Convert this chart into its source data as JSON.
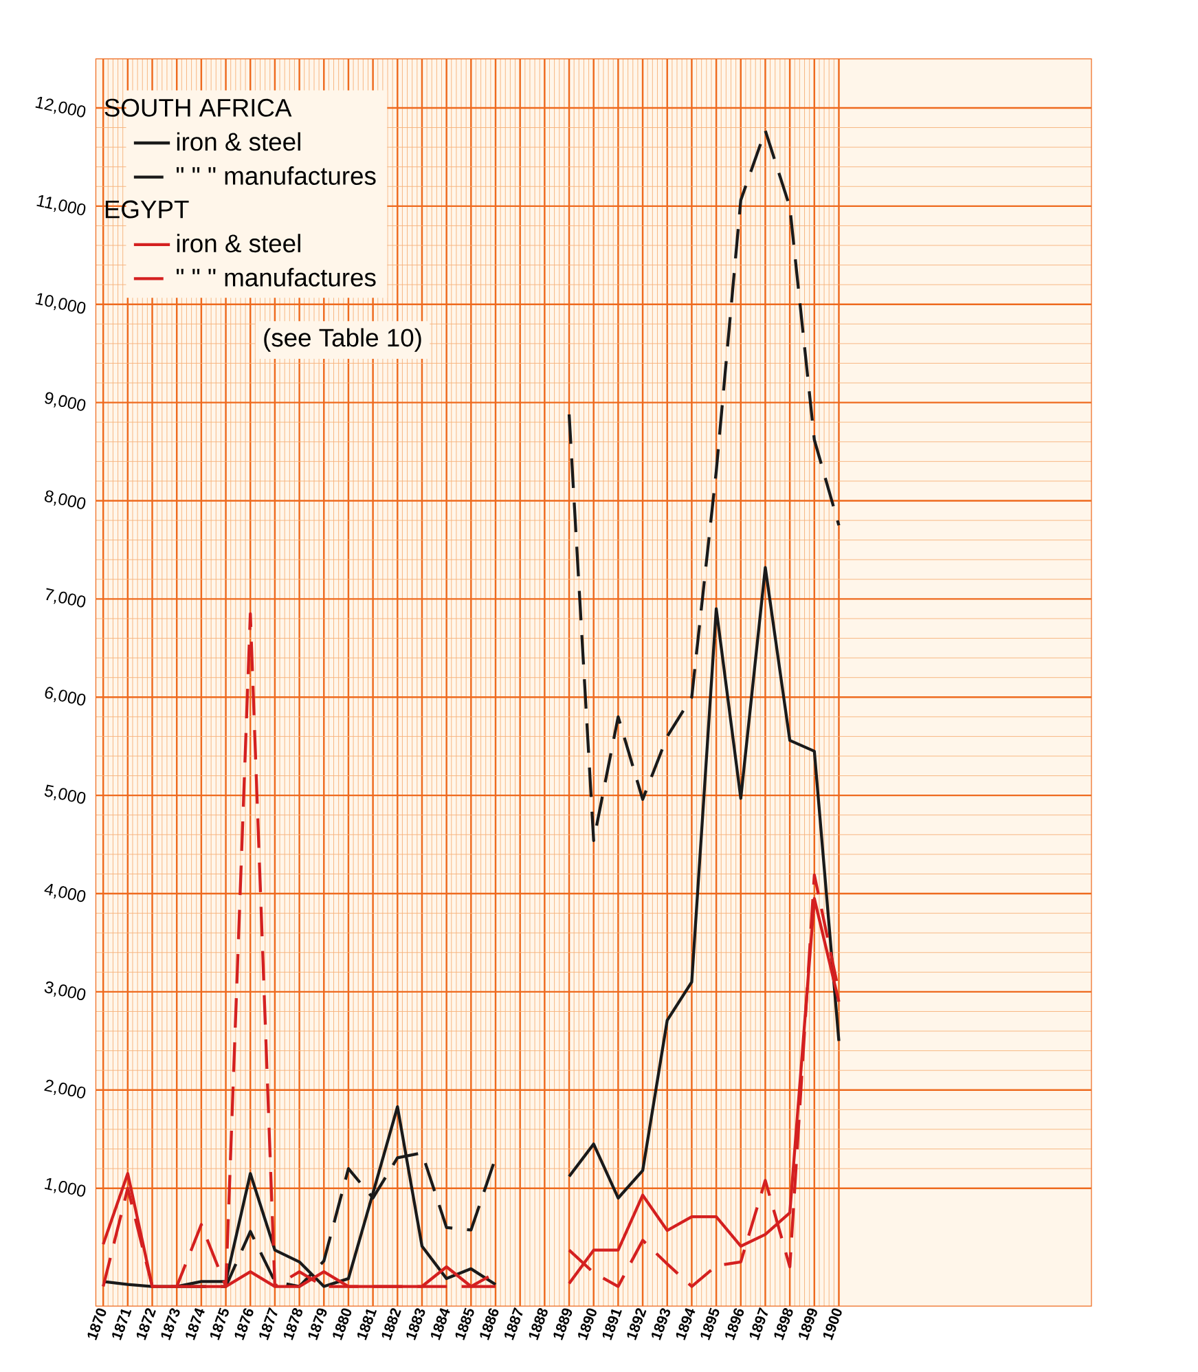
{
  "chart_data": {
    "type": "line",
    "categories": [
      "1870",
      "1871",
      "1872",
      "1873",
      "1874",
      "1875",
      "1876",
      "1877",
      "1878",
      "1879",
      "1880",
      "1881",
      "1882",
      "1883",
      "1884",
      "1885",
      "1886",
      "1887",
      "1888",
      "1889",
      "1890",
      "1891",
      "1892",
      "1893",
      "1894",
      "1895",
      "1896",
      "1897",
      "1898",
      "1899",
      "1900"
    ],
    "series": [
      {
        "name": "iron & steel",
        "color": "#1a1a1a",
        "line_style": "solid",
        "values": [
          50,
          20,
          0,
          0,
          50,
          50,
          1150,
          370,
          250,
          0,
          80,
          950,
          1830,
          410,
          80,
          180,
          20,
          null,
          null,
          1120,
          1450,
          900,
          1180,
          2710,
          3100,
          6900,
          4970,
          7320,
          5560,
          5450,
          2500
        ]
      },
      {
        "name": "\" \" \" manufactures",
        "color": "#1a1a1a",
        "line_style": "dashed",
        "values": [
          null,
          null,
          null,
          0,
          0,
          0,
          560,
          50,
          0,
          260,
          1200,
          900,
          1310,
          1360,
          600,
          575,
          1310,
          null,
          null,
          8880,
          4540,
          5800,
          4960,
          5600,
          6000,
          8300,
          11060,
          11770,
          10990,
          8620,
          7750
        ]
      },
      {
        "name": "iron & steel",
        "color": "#d42020",
        "line_style": "solid",
        "values": [
          430,
          1150,
          0,
          0,
          0,
          0,
          150,
          0,
          0,
          150,
          0,
          0,
          0,
          0,
          200,
          0,
          0,
          null,
          null,
          30,
          370,
          370,
          930,
          570,
          710,
          710,
          410,
          530,
          750,
          3950,
          2900
        ]
      },
      {
        "name": "\" \" \" manufactures",
        "color": "#d42020",
        "line_style": "dashed",
        "values": [
          0,
          1000,
          0,
          0,
          630,
          0,
          6850,
          0,
          150,
          0,
          0,
          0,
          0,
          0,
          0,
          0,
          140,
          null,
          null,
          370,
          140,
          0,
          470,
          230,
          0,
          210,
          250,
          1080,
          200,
          4190,
          3000
        ]
      }
    ],
    "annotations": [
      "SOUTH AFRICA",
      "EGYPT",
      "(see Table 10)"
    ],
    "ylim": [
      -200,
      12500
    ],
    "yticks": [
      {
        "value": 1000,
        "label": "1,000"
      },
      {
        "value": 2000,
        "label": "2,000"
      },
      {
        "value": 3000,
        "label": "3,000"
      },
      {
        "value": 4000,
        "label": "4,000"
      },
      {
        "value": 5000,
        "label": "5,000"
      },
      {
        "value": 6000,
        "label": "6,000"
      },
      {
        "value": 7000,
        "label": "7,000"
      },
      {
        "value": 8000,
        "label": "8,000"
      },
      {
        "value": 9000,
        "label": "9,000"
      },
      {
        "value": 10000,
        "label": "10,000"
      },
      {
        "value": 11000,
        "label": "11,000"
      },
      {
        "value": 12000,
        "label": "12,000"
      }
    ],
    "grid": true,
    "legend": "top left",
    "marker": "none"
  }
}
